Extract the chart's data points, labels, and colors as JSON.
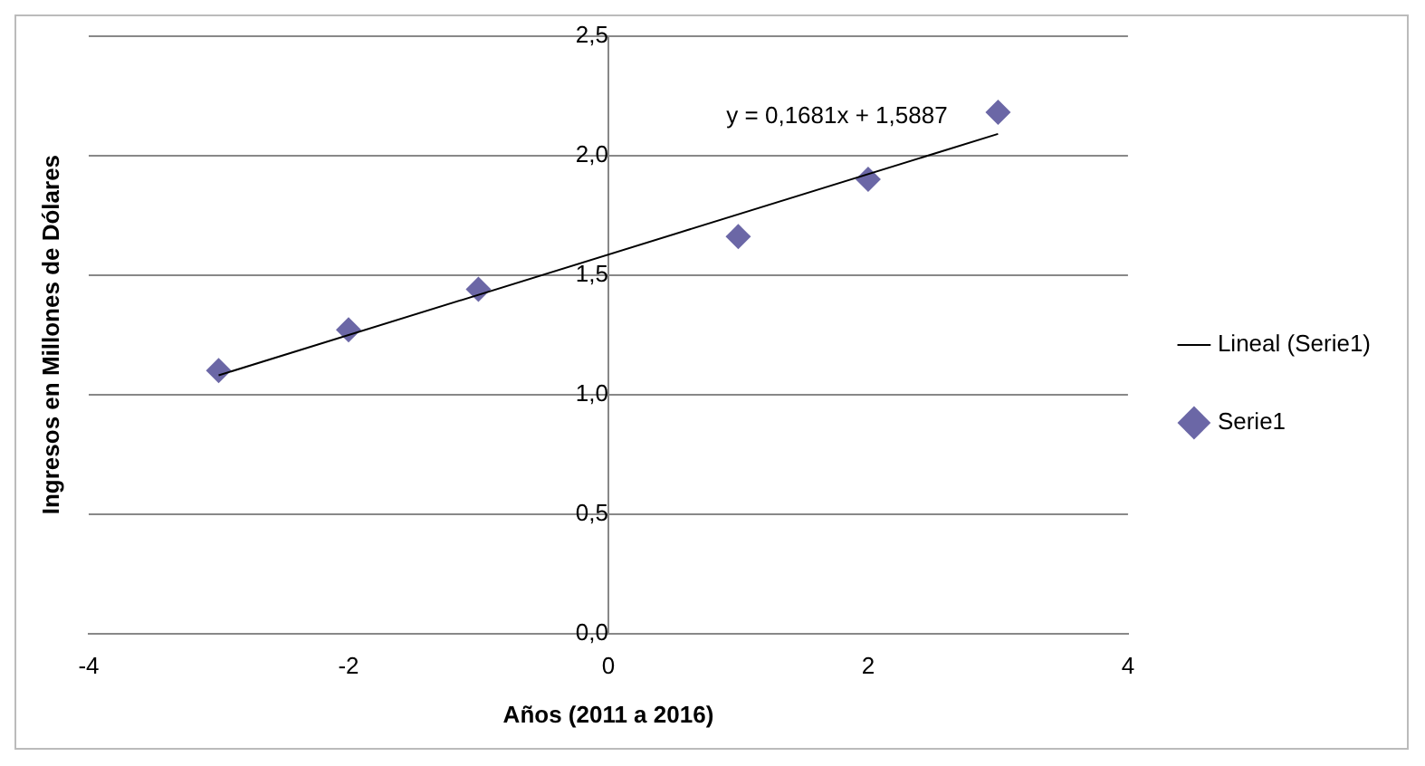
{
  "chart_data": {
    "type": "scatter",
    "xlabel": "Años (2011 a 2016)",
    "ylabel": "Ingresos en Millones de Dólares",
    "series": [
      {
        "name": "Serie1",
        "type": "scatter",
        "color": "#6b67a6",
        "marker": "diamond",
        "x": [
          -3,
          -2,
          -1,
          1,
          2,
          3
        ],
        "values": [
          1.1,
          1.27,
          1.44,
          1.66,
          1.9,
          2.18
        ]
      },
      {
        "name": "Lineal (Serie1)",
        "type": "line",
        "color": "#000000",
        "marker": "none",
        "line_style": "solid",
        "x": [
          -3,
          3
        ],
        "values": [
          1.08,
          2.09
        ]
      }
    ],
    "xlim": [
      -4,
      4
    ],
    "xticks": [
      -4,
      -2,
      0,
      2,
      4
    ],
    "ylim": [
      0,
      2.5
    ],
    "yticks": [
      {
        "value": 0,
        "label": "0,0"
      },
      {
        "value": 0.5,
        "label": "0,5"
      },
      {
        "value": 1,
        "label": "1,0"
      },
      {
        "value": 1.5,
        "label": "1,5"
      },
      {
        "value": 2,
        "label": "2,0"
      },
      {
        "value": 2.5,
        "label": "2,5"
      }
    ],
    "grid": "y",
    "legend": "right",
    "annotations": [
      "y = 0,1681x + 1,5887"
    ]
  }
}
